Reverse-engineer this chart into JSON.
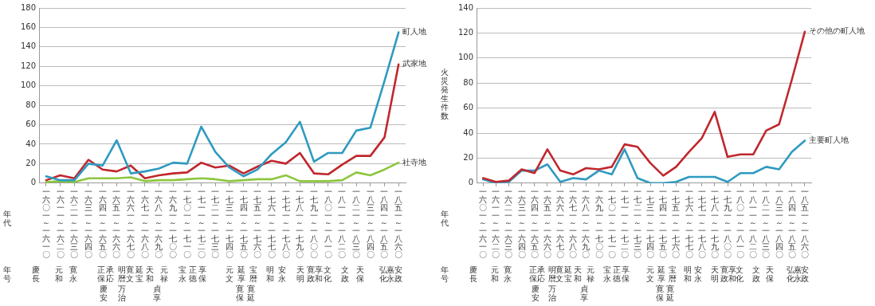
{
  "chart_data": [
    {
      "type": "line",
      "xlabel": "年代",
      "ylim": [
        0,
        180
      ],
      "yticks": [
        0,
        20,
        40,
        60,
        80,
        100,
        120,
        140,
        160,
        180
      ],
      "grid": "y",
      "legend": false,
      "categories": [
        "一六〇一～一六一〇",
        "一六一一～一六二〇",
        "一六二一～一六三〇",
        "一六三一～一六四〇",
        "一六四一～一六五〇",
        "一六五一～一六六〇",
        "一六六一～一六七〇",
        "一六七一～一六八〇",
        "一六八一～一六九〇",
        "一六九一～一七〇〇",
        "一七〇一～一七一〇",
        "一七一一～一七二〇",
        "一七二一～一七三〇",
        "一七三一～一七四〇",
        "一七四一～一七五〇",
        "一七五一～一七六〇",
        "一七六一～一七七〇",
        "一七七一～一七八〇",
        "一七八一～一七九〇",
        "一七九一～一八〇〇",
        "一八〇一～一八一〇",
        "一八一一～一八二〇",
        "一八二一～一八三〇",
        "一八三一～一八四〇",
        "一八四一～一八五〇",
        "一八五一～一八六〇"
      ],
      "series": [
        {
          "name": "町人地",
          "color": "#2e9ac0",
          "values": [
            7,
            3,
            3,
            20,
            18,
            44,
            10,
            12,
            15,
            21,
            20,
            58,
            32,
            16,
            7,
            14,
            30,
            42,
            63,
            22,
            31,
            31,
            54,
            57,
            105,
            155
          ]
        },
        {
          "name": "武家地",
          "color": "#c0272d",
          "values": [
            3,
            8,
            5,
            24,
            14,
            12,
            18,
            5,
            8,
            10,
            11,
            21,
            16,
            18,
            10,
            17,
            23,
            20,
            31,
            10,
            9,
            19,
            28,
            28,
            47,
            122
          ]
        },
        {
          "name": "社寺地",
          "color": "#8dc63f",
          "values": [
            1,
            2,
            1,
            5,
            5,
            5,
            6,
            2,
            3,
            3,
            4,
            5,
            4,
            2,
            3,
            4,
            4,
            8,
            2,
            2,
            2,
            3,
            11,
            8,
            14,
            21
          ]
        }
      ],
      "annotations": [
        "年号",
        "慶長",
        "元和",
        "寛永",
        "正保",
        "慶安",
        "承応",
        "明暦",
        "万治",
        "寛文",
        "延宝",
        "天和",
        "元禄",
        "貞享",
        "宝永",
        "正徳",
        "享保",
        "元文",
        "延享",
        "寛保",
        "寛延",
        "宝暦",
        "明和",
        "安永",
        "天明",
        "寛政",
        "享和",
        "文化",
        "文政",
        "天保",
        "弘化",
        "嘉永",
        "安政"
      ]
    },
    {
      "type": "line",
      "xlabel": "年代",
      "ylabel": "火災発生件数",
      "ylim": [
        0,
        140
      ],
      "yticks": [
        0,
        20,
        40,
        60,
        80,
        100,
        120,
        140
      ],
      "grid": "y",
      "legend": false,
      "categories": [
        "一六〇一～一六一〇",
        "一六一一～一六二〇",
        "一六二一～一六三〇",
        "一六三一～一六四〇",
        "一六四一～一六五〇",
        "一六五一～一六六〇",
        "一六六一～一六七〇",
        "一六七一～一六八〇",
        "一六八一～一六九〇",
        "一六九一～一七〇〇",
        "一七〇一～一七一〇",
        "一七一一～一七二〇",
        "一七二一～一七三〇",
        "一七三一～一七四〇",
        "一七四一～一七五〇",
        "一七五一～一七六〇",
        "一七六一～一七七〇",
        "一七七一～一七八〇",
        "一七八一～一七九〇",
        "一七九一～一八〇〇",
        "一八〇一～一八一〇",
        "一八一一～一八二〇",
        "一八二一～一八三〇",
        "一八三一～一八四〇",
        "一八四一～一八五〇",
        "一八五一～一八六〇"
      ],
      "series": [
        {
          "name": "その他の町人地",
          "color": "#c0272d",
          "values": [
            4,
            1,
            2,
            11,
            8,
            27,
            10,
            7,
            12,
            11,
            13,
            31,
            29,
            16,
            6,
            13,
            25,
            36,
            57,
            21,
            23,
            23,
            42,
            47,
            83,
            121
          ]
        },
        {
          "name": "主要町人地",
          "color": "#2e9ac0",
          "values": [
            3,
            0,
            1,
            10,
            10,
            15,
            1,
            4,
            3,
            10,
            7,
            27,
            4,
            0,
            0,
            1,
            5,
            5,
            5,
            1,
            8,
            8,
            13,
            11,
            25,
            34
          ]
        }
      ],
      "annotations": [
        "年号",
        "慶長",
        "元和",
        "寛永",
        "正保",
        "慶安",
        "承応",
        "明暦",
        "万治",
        "寛文",
        "延宝",
        "天和",
        "元禄",
        "貞享",
        "宝永",
        "正徳",
        "享保",
        "元文",
        "延享",
        "寛保",
        "寛延",
        "宝暦",
        "明和",
        "安永",
        "天明",
        "寛政",
        "享和",
        "文化",
        "文政",
        "天保",
        "弘化",
        "嘉永",
        "安政"
      ]
    }
  ]
}
